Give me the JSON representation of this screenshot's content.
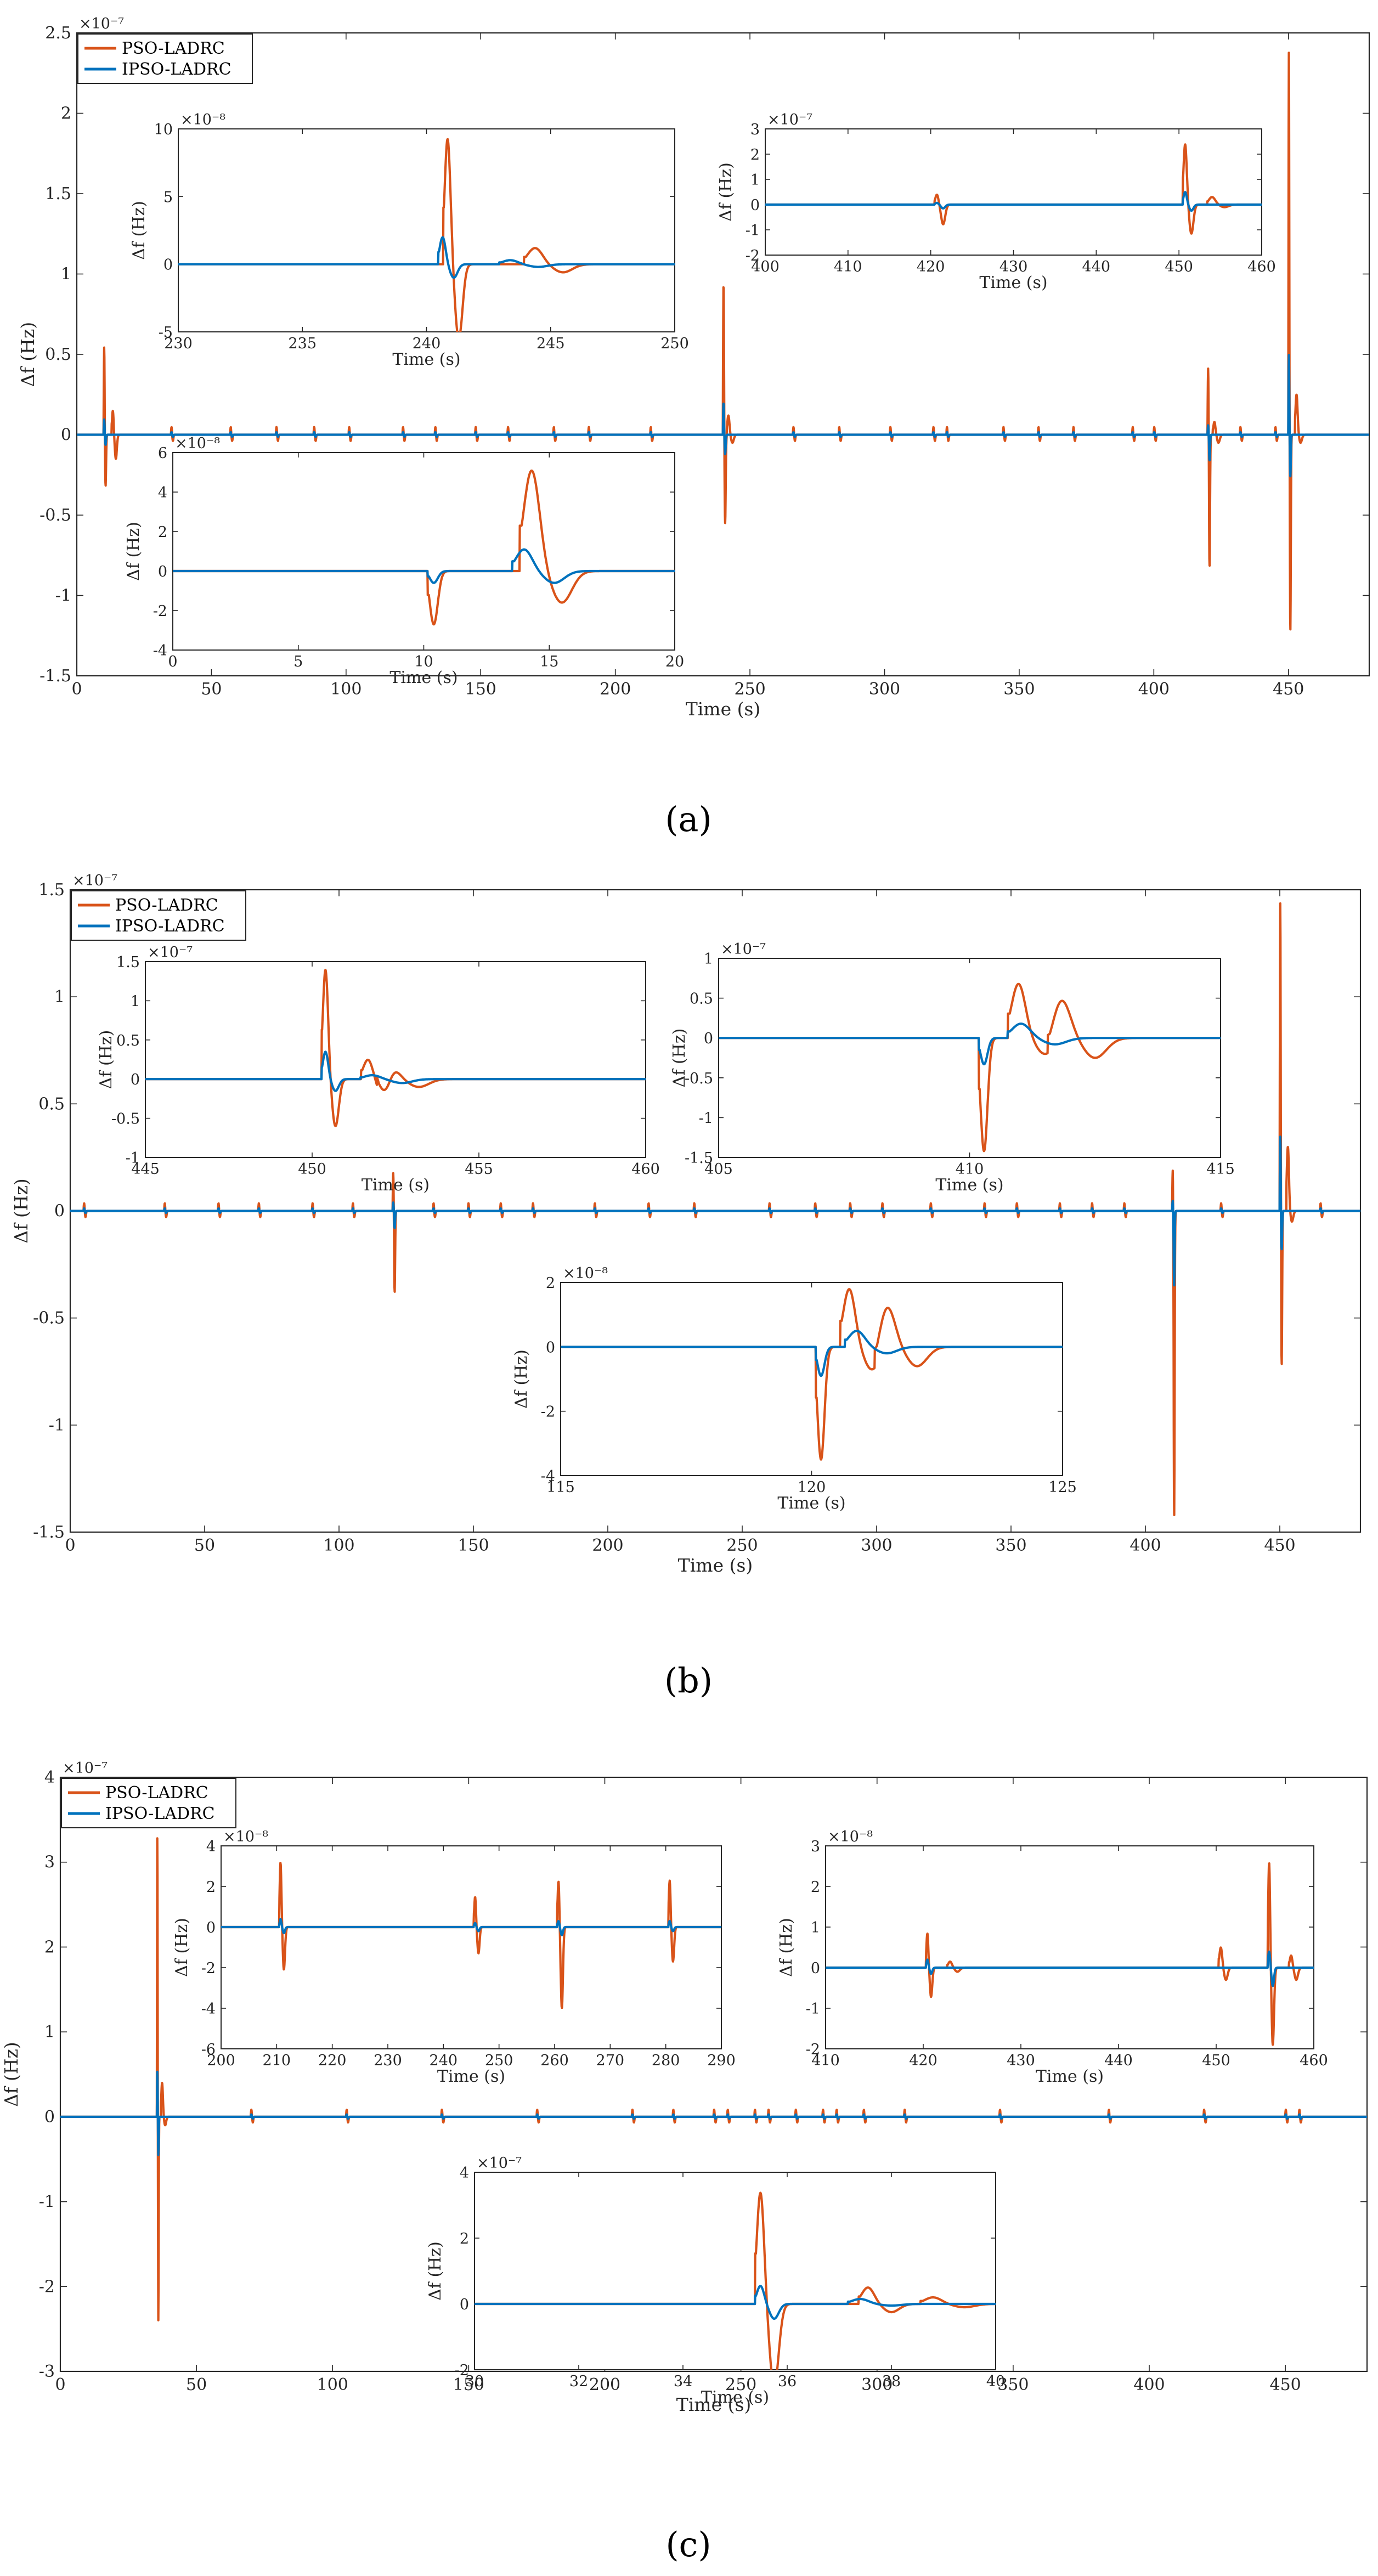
{
  "colors": {
    "pso": "#D95319",
    "ipso": "#0072BD"
  },
  "legend": [
    "PSO-LADRC",
    "IPSO-LADRC"
  ],
  "chart_data": [
    {
      "panel": "a",
      "caption": "(a)",
      "type": "line",
      "ylabel": "Δf (Hz)",
      "xlabel": "Time (s)",
      "multiplier": "×10⁻⁷",
      "xlim": [
        0,
        480
      ],
      "ylim": [
        -1.5,
        2.5
      ],
      "xticks": [
        0,
        50,
        100,
        150,
        200,
        250,
        300,
        350,
        400,
        450
      ],
      "yticks": [
        -1.5,
        -1,
        -0.5,
        0,
        0.5,
        1,
        1.5,
        2,
        2.5
      ],
      "small_events": [
        10,
        35,
        57,
        74,
        88,
        101,
        121,
        133,
        148,
        160,
        177,
        190,
        213,
        266,
        283,
        302,
        318,
        323,
        344,
        357,
        370,
        392,
        400,
        432,
        445
      ],
      "series": [
        {
          "name": "PSO-LADRC",
          "events": [
            [
              10,
              0.5,
              -0.28,
              0.7
            ],
            [
              13,
              0.15,
              -0.15,
              1.5
            ],
            [
              240,
              0.95,
              -0.55,
              0.8
            ],
            [
              241.5,
              0.12,
              -0.05,
              2
            ],
            [
              420,
              0.42,
              -0.82,
              0.7
            ],
            [
              422,
              0.08,
              -0.05,
              2
            ],
            [
              450,
              2.4,
              -1.22,
              0.7
            ],
            [
              452.5,
              0.25,
              -0.05,
              2
            ]
          ]
        },
        {
          "name": "IPSO-LADRC",
          "events": [
            [
              10,
              0.08,
              -0.05,
              0.7
            ],
            [
              240,
              0.2,
              -0.12,
              0.8
            ],
            [
              420,
              0.06,
              -0.16,
              0.7
            ],
            [
              450,
              0.5,
              -0.26,
              0.7
            ]
          ]
        }
      ],
      "insets": [
        {
          "xlim": [
            230,
            250
          ],
          "ylim": [
            -5,
            10
          ],
          "xticks": [
            230,
            235,
            240,
            245,
            250
          ],
          "yticks": [
            -5,
            0,
            5,
            10
          ],
          "multiplier": "×10⁻⁸",
          "ylabel": "Δf (Hz)",
          "xlabel": "Time (s)",
          "series": [
            {
              "name": "PSO-LADRC",
              "events": [
                [
                  240.7,
                  9.3,
                  -5.5,
                  0.6
                ],
                [
                  244,
                  1.2,
                  -0.6,
                  1.5
                ]
              ]
            },
            {
              "name": "IPSO-LADRC",
              "events": [
                [
                  240.5,
                  2.0,
                  -1.0,
                  0.6
                ],
                [
                  243,
                  0.3,
                  -0.2,
                  1.5
                ]
              ]
            }
          ]
        },
        {
          "xlim": [
            400,
            460
          ],
          "ylim": [
            -2,
            3
          ],
          "xticks": [
            400,
            410,
            420,
            430,
            440,
            450,
            460
          ],
          "yticks": [
            -2,
            -1,
            0,
            1,
            2,
            3
          ],
          "multiplier": "×10⁻⁷",
          "ylabel": "Δf (Hz)",
          "xlabel": "Time (s)",
          "series": [
            {
              "name": "PSO-LADRC",
              "events": [
                [
                  420.5,
                  0.4,
                  -0.78,
                  1.0
                ],
                [
                  450.5,
                  2.4,
                  -1.15,
                  1.0
                ],
                [
                  453.5,
                  0.3,
                  -0.1,
                  2.0
                ]
              ]
            },
            {
              "name": "IPSO-LADRC",
              "events": [
                [
                  420.5,
                  0.07,
                  -0.15,
                  1.0
                ],
                [
                  450.5,
                  0.5,
                  -0.24,
                  1.0
                ]
              ]
            }
          ]
        },
        {
          "xlim": [
            0,
            20
          ],
          "ylim": [
            -4,
            6
          ],
          "xticks": [
            0,
            5,
            10,
            15,
            20
          ],
          "yticks": [
            -4,
            -2,
            0,
            2,
            4,
            6
          ],
          "multiplier": "×10⁻⁸",
          "ylabel": "Δf (Hz)",
          "xlabel": "Time (s)",
          "series": [
            {
              "name": "PSO-LADRC",
              "events": [
                [
                  10.2,
                  -2.7,
                  0,
                  0.8
                ],
                [
                  12.5,
                  0,
                  0,
                  1
                ],
                [
                  13.9,
                  5.1,
                  -1.6,
                  1.6
                ]
              ]
            },
            {
              "name": "IPSO-LADRC",
              "events": [
                [
                  10.2,
                  -0.6,
                  0,
                  0.8
                ],
                [
                  13.6,
                  1.1,
                  -0.6,
                  1.6
                ]
              ]
            }
          ]
        }
      ]
    },
    {
      "panel": "b",
      "caption": "(b)",
      "type": "line",
      "ylabel": "Δf (Hz)",
      "xlabel": "Time (s)",
      "multiplier": "×10⁻⁷",
      "xlim": [
        0,
        480
      ],
      "ylim": [
        -1.5,
        1.5
      ],
      "xticks": [
        0,
        50,
        100,
        150,
        200,
        250,
        300,
        350,
        400,
        450
      ],
      "yticks": [
        -1.5,
        -1,
        -0.5,
        0,
        0.5,
        1,
        1.5
      ],
      "small_events": [
        5,
        35,
        55,
        70,
        90,
        105,
        135,
        148,
        160,
        172,
        195,
        215,
        232,
        260,
        277,
        290,
        302,
        320,
        340,
        352,
        368,
        380,
        392,
        428,
        465
      ],
      "series": [
        {
          "name": "PSO-LADRC",
          "events": [
            [
              120,
              0.18,
              -0.38,
              0.7
            ],
            [
              410,
              0.2,
              -1.43,
              0.7
            ],
            [
              450,
              1.45,
              -0.72,
              0.7
            ],
            [
              452.5,
              0.3,
              -0.05,
              2
            ]
          ]
        },
        {
          "name": "IPSO-LADRC",
          "events": [
            [
              120,
              0.04,
              -0.08,
              0.7
            ],
            [
              410,
              0.05,
              -0.35,
              0.7
            ],
            [
              450,
              0.35,
              -0.18,
              0.7
            ]
          ]
        }
      ],
      "insets": [
        {
          "xlim": [
            445,
            460
          ],
          "ylim": [
            -1,
            1.5
          ],
          "xticks": [
            445,
            450,
            455,
            460
          ],
          "yticks": [
            -1,
            -0.5,
            0,
            0.5,
            1,
            1.5
          ],
          "multiplier": "×10⁻⁷",
          "ylabel": "Δf (Hz)",
          "xlabel": "Time (s)",
          "series": [
            {
              "name": "PSO-LADRC",
              "events": [
                [
                  450.3,
                  1.4,
                  -0.6,
                  0.4
                ],
                [
                  451.5,
                  0.25,
                  -0.35,
                  0.7
                ],
                [
                  452,
                  0.24,
                  -0.1,
                  1.2
                ]
              ]
            },
            {
              "name": "IPSO-LADRC",
              "events": [
                [
                  450.3,
                  0.35,
                  -0.15,
                  0.4
                ],
                [
                  451.5,
                  0.05,
                  -0.05,
                  1.2
                ]
              ]
            }
          ]
        },
        {
          "xlim": [
            405,
            415
          ],
          "ylim": [
            -1.5,
            1
          ],
          "xticks": [
            405,
            410,
            415
          ],
          "yticks": [
            -1.5,
            -1,
            -0.5,
            0,
            0.5,
            1
          ],
          "multiplier": "×10⁻⁷",
          "ylabel": "Δf (Hz)",
          "xlabel": "Time (s)",
          "series": [
            {
              "name": "PSO-LADRC",
              "events": [
                [
                  410.2,
                  -1.42,
                  0,
                  0.35
                ],
                [
                  410.8,
                  0.68,
                  -0.2,
                  0.7
                ],
                [
                  411.6,
                  0.5,
                  -0.25,
                  0.9
                ]
              ]
            },
            {
              "name": "IPSO-LADRC",
              "events": [
                [
                  410.2,
                  -0.33,
                  0,
                  0.35
                ],
                [
                  410.8,
                  0.18,
                  -0.08,
                  0.9
                ]
              ]
            }
          ]
        },
        {
          "xlim": [
            115,
            125
          ],
          "ylim": [
            -4,
            2
          ],
          "xticks": [
            115,
            120,
            125
          ],
          "yticks": [
            -4,
            -2,
            0,
            2
          ],
          "multiplier": "×10⁻⁸",
          "ylabel": "Δf (Hz)",
          "xlabel": "Time (s)",
          "series": [
            {
              "name": "PSO-LADRC",
              "events": [
                [
                  120.1,
                  -3.5,
                  0,
                  0.35
                ],
                [
                  120.6,
                  1.8,
                  -0.7,
                  0.6
                ],
                [
                  121.3,
                  1.3,
                  -0.6,
                  0.8
                ]
              ]
            },
            {
              "name": "IPSO-LADRC",
              "events": [
                [
                  120.1,
                  -0.9,
                  0,
                  0.35
                ],
                [
                  120.7,
                  0.5,
                  -0.2,
                  0.8
                ]
              ]
            }
          ]
        }
      ]
    },
    {
      "panel": "c",
      "caption": "(c)",
      "type": "line",
      "ylabel": "Δf (Hz)",
      "xlabel": "Time (s)",
      "multiplier": "×10⁻⁷",
      "xlim": [
        0,
        480
      ],
      "ylim": [
        -3,
        4
      ],
      "xticks": [
        0,
        50,
        100,
        150,
        200,
        250,
        300,
        350,
        400,
        450
      ],
      "yticks": [
        -3,
        -2,
        -1,
        0,
        1,
        2,
        3,
        4
      ],
      "small_events": [
        70,
        105,
        140,
        175,
        210,
        225,
        240,
        245,
        255,
        260,
        270,
        280,
        285,
        295,
        310,
        345,
        385,
        420,
        450,
        455
      ],
      "series": [
        {
          "name": "PSO-LADRC",
          "events": [
            [
              35.5,
              3.4,
              -2.4,
              0.5
            ],
            [
              37,
              0.4,
              -0.1,
              1.5
            ]
          ]
        },
        {
          "name": "IPSO-LADRC",
          "events": [
            [
              35.5,
              0.55,
              -0.45,
              0.5
            ]
          ]
        }
      ],
      "insets": [
        {
          "xlim": [
            200,
            290
          ],
          "ylim": [
            -6,
            4
          ],
          "xticks": [
            200,
            210,
            220,
            230,
            240,
            250,
            260,
            270,
            280,
            290
          ],
          "yticks": [
            -6,
            -4,
            -2,
            0,
            2,
            4
          ],
          "multiplier": "×10⁻⁸",
          "ylabel": "Δf (Hz)",
          "xlabel": "Time (s)",
          "series": [
            {
              "name": "PSO-LADRC",
              "events": [
                [
                  210.5,
                  3.2,
                  -2.1,
                  0.8
                ],
                [
                  245.5,
                  1.5,
                  -1.3,
                  0.8
                ],
                [
                  260.5,
                  2.3,
                  -4.0,
                  0.8
                ],
                [
                  280.5,
                  2.3,
                  -1.7,
                  0.8
                ]
              ]
            },
            {
              "name": "IPSO-LADRC",
              "events": [
                [
                  210.5,
                  0.4,
                  -0.3,
                  0.8
                ],
                [
                  245.5,
                  0.2,
                  -0.2,
                  0.8
                ],
                [
                  260.5,
                  0.3,
                  -0.4,
                  0.8
                ],
                [
                  280.5,
                  0.3,
                  -0.2,
                  0.8
                ]
              ]
            }
          ]
        },
        {
          "xlim": [
            410,
            460
          ],
          "ylim": [
            -2,
            3
          ],
          "xticks": [
            410,
            420,
            430,
            440,
            450,
            460
          ],
          "yticks": [
            -2,
            -1,
            0,
            1,
            2,
            3
          ],
          "multiplier": "×10⁻⁸",
          "ylabel": "Δf (Hz)",
          "xlabel": "Time (s)",
          "series": [
            {
              "name": "PSO-LADRC",
              "events": [
                [
                  420.3,
                  0.85,
                  -0.72,
                  0.5
                ],
                [
                  422.5,
                  0.15,
                  -0.1,
                  1
                ],
                [
                  450.3,
                  0.5,
                  -0.3,
                  0.7
                ],
                [
                  455.3,
                  2.6,
                  -1.9,
                  0.5
                ],
                [
                  457.5,
                  0.3,
                  -0.3,
                  0.7
                ]
              ]
            },
            {
              "name": "IPSO-LADRC",
              "events": [
                [
                  420.3,
                  0.2,
                  -0.15,
                  0.5
                ],
                [
                  455.3,
                  0.4,
                  -0.45,
                  0.5
                ]
              ]
            }
          ]
        },
        {
          "xlim": [
            30,
            40
          ],
          "ylim": [
            -2,
            4
          ],
          "xticks": [
            30,
            32,
            34,
            36,
            38,
            40
          ],
          "yticks": [
            -2,
            0,
            2,
            4
          ],
          "multiplier": "×10⁻⁷",
          "ylabel": "Δf (Hz)",
          "xlabel": "Time (s)",
          "series": [
            {
              "name": "PSO-LADRC",
              "events": [
                [
                  35.4,
                  3.4,
                  -2.5,
                  0.35
                ],
                [
                  37.4,
                  0.5,
                  -0.25,
                  0.6
                ],
                [
                  38.6,
                  0.2,
                  -0.1,
                  0.8
                ]
              ]
            },
            {
              "name": "IPSO-LADRC",
              "events": [
                [
                  35.4,
                  0.55,
                  -0.45,
                  0.35
                ],
                [
                  37.2,
                  0.15,
                  -0.05,
                  0.8
                ]
              ]
            }
          ]
        }
      ]
    }
  ]
}
